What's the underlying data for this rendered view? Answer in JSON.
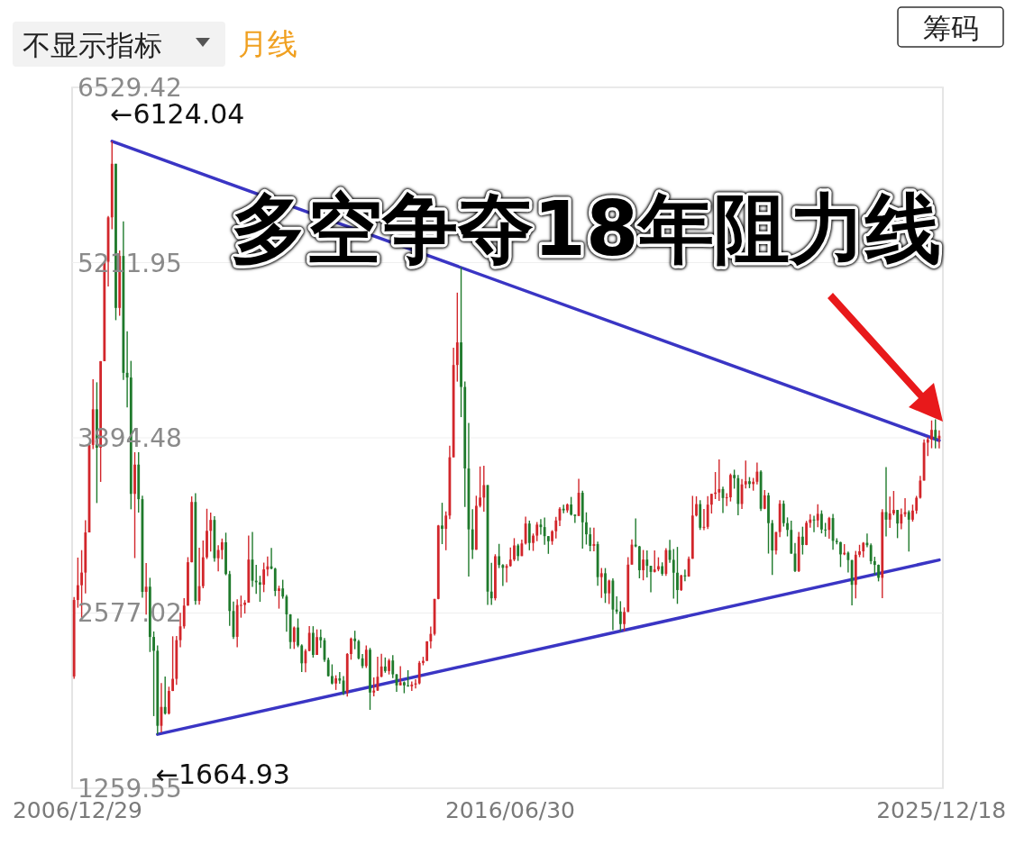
{
  "chart_data": {
    "type": "candlestick",
    "title": "多空争夺18年阻力线",
    "annotations": [
      "不显示指标",
      "月线",
      "筹码",
      {
        "text": "←6124.04",
        "x": "2007-10",
        "y": 6124.04
      },
      {
        "text": "←1664.93",
        "x": "2008-10",
        "y": 1664.93
      }
    ],
    "xlim": [
      "2006-11-16",
      "2025-12-31"
    ],
    "xticks": [
      {
        "value": "2006-12-29",
        "label": "2006/12/29"
      },
      {
        "value": "2016-06-30",
        "label": "2016/06/30"
      },
      {
        "value": "2025-12-18",
        "label": "2025/12/18"
      }
    ],
    "ylim": [
      1259.55,
      6529.42
    ],
    "yticks": [
      1259.55,
      2577.02,
      3894.48,
      5211.95,
      6529.42
    ],
    "grid": "y",
    "x": [
      "2006-12",
      "2007-01",
      "2007-02",
      "2007-03",
      "2007-04",
      "2007-05",
      "2007-06",
      "2007-07",
      "2007-08",
      "2007-09",
      "2007-10",
      "2007-11",
      "2007-12",
      "2008-01",
      "2008-02",
      "2008-03",
      "2008-04",
      "2008-05",
      "2008-06",
      "2008-07",
      "2008-08",
      "2008-09",
      "2008-10",
      "2008-11",
      "2008-12",
      "2009-01",
      "2009-02",
      "2009-03",
      "2009-04",
      "2009-05",
      "2009-06",
      "2009-07",
      "2009-08",
      "2009-09",
      "2009-10",
      "2009-11",
      "2009-12",
      "2010-01",
      "2010-02",
      "2010-03",
      "2010-04",
      "2010-05",
      "2010-06",
      "2010-07",
      "2010-08",
      "2010-09",
      "2010-10",
      "2010-11",
      "2010-12",
      "2011-01",
      "2011-02",
      "2011-03",
      "2011-04",
      "2011-05",
      "2011-06",
      "2011-07",
      "2011-08",
      "2011-09",
      "2011-10",
      "2011-11",
      "2011-12",
      "2012-01",
      "2012-02",
      "2012-03",
      "2012-04",
      "2012-05",
      "2012-06",
      "2012-07",
      "2012-08",
      "2012-09",
      "2012-10",
      "2012-11",
      "2012-12",
      "2013-01",
      "2013-02",
      "2013-03",
      "2013-04",
      "2013-05",
      "2013-06",
      "2013-07",
      "2013-08",
      "2013-09",
      "2013-10",
      "2013-11",
      "2013-12",
      "2014-01",
      "2014-02",
      "2014-03",
      "2014-04",
      "2014-05",
      "2014-06",
      "2014-07",
      "2014-08",
      "2014-09",
      "2014-10",
      "2014-11",
      "2014-12",
      "2015-01",
      "2015-02",
      "2015-03",
      "2015-04",
      "2015-05",
      "2015-06",
      "2015-07",
      "2015-08",
      "2015-09",
      "2015-10",
      "2015-11",
      "2015-12",
      "2016-01",
      "2016-02",
      "2016-03",
      "2016-04",
      "2016-05",
      "2016-06",
      "2016-07",
      "2016-08",
      "2016-09",
      "2016-10",
      "2016-11",
      "2016-12",
      "2017-01",
      "2017-02",
      "2017-03",
      "2017-04",
      "2017-05",
      "2017-06",
      "2017-07",
      "2017-08",
      "2017-09",
      "2017-10",
      "2017-11",
      "2017-12",
      "2018-01",
      "2018-02",
      "2018-03",
      "2018-04",
      "2018-05",
      "2018-06",
      "2018-07",
      "2018-08",
      "2018-09",
      "2018-10",
      "2018-11",
      "2018-12",
      "2019-01",
      "2019-02",
      "2019-03",
      "2019-04",
      "2019-05",
      "2019-06",
      "2019-07",
      "2019-08",
      "2019-09",
      "2019-10",
      "2019-11",
      "2019-12",
      "2020-01",
      "2020-02",
      "2020-03",
      "2020-04",
      "2020-05",
      "2020-06",
      "2020-07",
      "2020-08",
      "2020-09",
      "2020-10",
      "2020-11",
      "2020-12",
      "2021-01",
      "2021-02",
      "2021-03",
      "2021-04",
      "2021-05",
      "2021-06",
      "2021-07",
      "2021-08",
      "2021-09",
      "2021-10",
      "2021-11",
      "2021-12",
      "2022-01",
      "2022-02",
      "2022-03",
      "2022-04",
      "2022-05",
      "2022-06",
      "2022-07",
      "2022-08",
      "2022-09",
      "2022-10",
      "2022-11",
      "2022-12",
      "2023-01",
      "2023-02",
      "2023-03",
      "2023-04",
      "2023-05",
      "2023-06",
      "2023-07",
      "2023-08",
      "2023-09",
      "2023-10",
      "2023-11",
      "2023-12",
      "2024-01",
      "2024-02",
      "2024-03",
      "2024-04",
      "2024-05",
      "2024-06",
      "2024-07",
      "2024-08",
      "2024-09",
      "2024-10",
      "2024-11",
      "2024-12",
      "2025-01",
      "2025-02",
      "2025-03",
      "2025-04",
      "2025-05",
      "2025-06",
      "2025-07",
      "2025-08",
      "2025-09",
      "2025-10",
      "2025-11",
      "2025-12"
    ],
    "ohlc": [
      [
        2100,
        2698,
        2082,
        2675
      ],
      [
        2675,
        2994,
        2617,
        2786
      ],
      [
        2786,
        3050,
        2541,
        2881
      ],
      [
        2881,
        3275,
        2724,
        3183
      ],
      [
        3183,
        3841,
        3183,
        3841
      ],
      [
        3841,
        4335,
        3810,
        4109
      ],
      [
        4109,
        4312,
        3404,
        3820
      ],
      [
        3820,
        4471,
        3563,
        4471
      ],
      [
        4471,
        5219,
        4471,
        5218
      ],
      [
        5218,
        5562,
        5032,
        5552
      ],
      [
        5552,
        6124.04,
        5462,
        5955
      ],
      [
        5955,
        5955,
        4779,
        4871
      ],
      [
        4871,
        5303,
        4812,
        5262
      ],
      [
        5262,
        5522,
        4330,
        4383
      ],
      [
        4383,
        4695,
        4123,
        4348
      ],
      [
        4348,
        4473,
        3357,
        3473
      ],
      [
        3473,
        3786,
        2990,
        3693
      ],
      [
        3693,
        3786,
        3333,
        3433
      ],
      [
        3433,
        3459,
        2693,
        2736
      ],
      [
        2736,
        2953,
        2566,
        2775
      ],
      [
        2775,
        2842,
        2284,
        2397
      ],
      [
        2397,
        2438,
        1802,
        2293
      ],
      [
        2293,
        2333,
        1664.93,
        1729
      ],
      [
        1729,
        2051,
        1679,
        1871
      ],
      [
        1871,
        2100,
        1814,
        1821
      ],
      [
        1821,
        2023,
        1814,
        1991
      ],
      [
        1991,
        2402,
        1990,
        2082
      ],
      [
        2082,
        2404,
        2037,
        2373
      ],
      [
        2373,
        2579,
        2320,
        2477
      ],
      [
        2477,
        2689,
        2461,
        2633
      ],
      [
        2633,
        2997,
        2632,
        2959
      ],
      [
        2959,
        3454,
        2958,
        3412
      ],
      [
        3412,
        3478,
        2639,
        2668
      ],
      [
        2668,
        3068,
        2639,
        2779
      ],
      [
        2779,
        3123,
        2764,
        2996
      ],
      [
        2996,
        3361,
        2983,
        3195
      ],
      [
        3195,
        3333,
        3039,
        3277
      ],
      [
        3277,
        3306,
        2963,
        2989
      ],
      [
        2989,
        3086,
        2890,
        3051
      ],
      [
        3051,
        3137,
        2981,
        3109
      ],
      [
        3109,
        3181,
        2861,
        2870
      ],
      [
        2870,
        2894,
        2481,
        2592
      ],
      [
        2592,
        2663,
        2382,
        2398
      ],
      [
        2398,
        2680,
        2319,
        2637
      ],
      [
        2637,
        2708,
        2542,
        2638
      ],
      [
        2638,
        2674,
        2573,
        2655
      ],
      [
        2655,
        3159,
        2655,
        2979
      ],
      [
        2979,
        3186,
        2774,
        2820
      ],
      [
        2820,
        2939,
        2721,
        2808
      ],
      [
        2808,
        2857,
        2661,
        2790
      ],
      [
        2790,
        2956,
        2734,
        2905
      ],
      [
        2905,
        3002,
        2854,
        2928
      ],
      [
        2928,
        3067,
        2906,
        2911
      ],
      [
        2911,
        2917,
        2704,
        2743
      ],
      [
        2743,
        2782,
        2610,
        2762
      ],
      [
        2762,
        2827,
        2685,
        2701
      ],
      [
        2701,
        2714,
        2437,
        2567
      ],
      [
        2567,
        2568,
        2307,
        2359
      ],
      [
        2359,
        2476,
        2307,
        2468
      ],
      [
        2468,
        2536,
        2320,
        2333
      ],
      [
        2333,
        2342,
        2134,
        2199
      ],
      [
        2199,
        2306,
        2132,
        2292
      ],
      [
        2292,
        2479,
        2289,
        2428
      ],
      [
        2428,
        2478,
        2242,
        2262
      ],
      [
        2262,
        2454,
        2262,
        2396
      ],
      [
        2396,
        2453,
        2315,
        2372
      ],
      [
        2372,
        2389,
        2210,
        2225
      ],
      [
        2225,
        2241,
        2100,
        2103
      ],
      [
        2103,
        2191,
        2040,
        2047
      ],
      [
        2047,
        2109,
        1999,
        2086
      ],
      [
        2086,
        2133,
        2046,
        2069
      ],
      [
        2069,
        2103,
        1960,
        1980
      ],
      [
        1980,
        2276,
        1949,
        2269
      ],
      [
        2269,
        2393,
        2226,
        2385
      ],
      [
        2385,
        2444,
        2305,
        2365
      ],
      [
        2365,
        2376,
        2228,
        2236
      ],
      [
        2236,
        2268,
        2162,
        2178
      ],
      [
        2178,
        2334,
        2164,
        2301
      ],
      [
        2301,
        2315,
        1849,
        1979
      ],
      [
        1979,
        2093,
        1951,
        1994
      ],
      [
        1994,
        2248,
        1991,
        2098
      ],
      [
        2098,
        2270,
        2095,
        2175
      ],
      [
        2175,
        2243,
        2128,
        2141
      ],
      [
        2141,
        2233,
        2115,
        2220
      ],
      [
        2220,
        2260,
        2087,
        2116
      ],
      [
        2116,
        2118,
        1984,
        2033
      ],
      [
        2033,
        2178,
        2033,
        2056
      ],
      [
        2056,
        2063,
        1974,
        2033
      ],
      [
        2033,
        2147,
        2023,
        2026
      ],
      [
        2026,
        2062,
        1991,
        2039
      ],
      [
        2039,
        2080,
        2010,
        2048
      ],
      [
        2048,
        2216,
        2040,
        2202
      ],
      [
        2202,
        2248,
        2184,
        2217
      ],
      [
        2217,
        2365,
        2217,
        2364
      ],
      [
        2364,
        2475,
        2311,
        2420
      ],
      [
        2420,
        2683,
        2408,
        2683
      ],
      [
        2683,
        3239,
        2680,
        3235
      ],
      [
        3235,
        3406,
        3095,
        3210
      ],
      [
        3210,
        3341,
        3049,
        3310
      ],
      [
        3310,
        3836,
        3284,
        3748
      ],
      [
        3748,
        4572,
        3747,
        4442
      ],
      [
        4442,
        4986,
        4317,
        4612
      ],
      [
        4612,
        5178,
        4050,
        4277
      ],
      [
        4277,
        4317,
        3374,
        3664
      ],
      [
        3664,
        4006,
        2851,
        3206
      ],
      [
        3206,
        3357,
        2983,
        3053
      ],
      [
        3053,
        3459,
        3052,
        3383
      ],
      [
        3383,
        3679,
        3371,
        3445
      ],
      [
        3445,
        3685,
        3339,
        3539
      ],
      [
        3539,
        3539,
        2638,
        2738
      ],
      [
        2738,
        2954,
        2638,
        2688
      ],
      [
        2688,
        3019,
        2672,
        3004
      ],
      [
        3004,
        3097,
        2915,
        2938
      ],
      [
        2938,
        2945,
        2781,
        2917
      ],
      [
        2917,
        2944,
        2808,
        2930
      ],
      [
        2930,
        3070,
        2926,
        2979
      ],
      [
        2979,
        3140,
        2967,
        3085
      ],
      [
        3085,
        3097,
        2969,
        3005
      ],
      [
        3005,
        3129,
        3005,
        3100
      ],
      [
        3100,
        3301,
        3092,
        3250
      ],
      [
        3250,
        3272,
        3049,
        3104
      ],
      [
        3104,
        3175,
        3044,
        3159
      ],
      [
        3159,
        3261,
        3118,
        3242
      ],
      [
        3242,
        3283,
        3167,
        3223
      ],
      [
        3223,
        3295,
        3090,
        3155
      ],
      [
        3155,
        3156,
        3022,
        3117
      ],
      [
        3117,
        3200,
        3090,
        3192
      ],
      [
        3192,
        3300,
        3137,
        3273
      ],
      [
        3273,
        3373,
        3231,
        3361
      ],
      [
        3361,
        3392,
        3328,
        3349
      ],
      [
        3349,
        3401,
        3331,
        3393
      ],
      [
        3393,
        3450,
        3310,
        3317
      ],
      [
        3317,
        3318,
        3254,
        3307
      ],
      [
        3307,
        3587,
        3307,
        3481
      ],
      [
        3481,
        3496,
        3062,
        3259
      ],
      [
        3259,
        3334,
        3092,
        3169
      ],
      [
        3169,
        3220,
        3041,
        3082
      ],
      [
        3082,
        3219,
        3041,
        3095
      ],
      [
        3095,
        3114,
        2782,
        2847
      ],
      [
        2847,
        2916,
        2691,
        2876
      ],
      [
        2876,
        2915,
        2653,
        2725
      ],
      [
        2725,
        2827,
        2644,
        2821
      ],
      [
        2821,
        2838,
        2449,
        2603
      ],
      [
        2603,
        2703,
        2571,
        2588
      ],
      [
        2588,
        2666,
        2440,
        2494
      ],
      [
        2494,
        2619,
        2441,
        2585
      ],
      [
        2585,
        2997,
        2585,
        2941
      ],
      [
        2941,
        3130,
        2941,
        3091
      ],
      [
        3091,
        3288,
        3071,
        3078
      ],
      [
        3078,
        3082,
        2838,
        2899
      ],
      [
        2899,
        3051,
        2823,
        2979
      ],
      [
        2979,
        3048,
        2844,
        2932
      ],
      [
        2932,
        2932,
        2733,
        2886
      ],
      [
        2886,
        3048,
        2882,
        2905
      ],
      [
        2905,
        2996,
        2891,
        2929
      ],
      [
        2929,
        2958,
        2857,
        2872
      ],
      [
        2872,
        3064,
        2857,
        3050
      ],
      [
        3050,
        3128,
        2955,
        2977
      ],
      [
        2977,
        3058,
        2685,
        2880
      ],
      [
        2880,
        3074,
        2646,
        2750
      ],
      [
        2750,
        2865,
        2743,
        2860
      ],
      [
        2860,
        2904,
        2816,
        2852
      ],
      [
        2852,
        3002,
        2849,
        2985
      ],
      [
        2985,
        3458,
        2985,
        3310
      ],
      [
        3310,
        3455,
        3303,
        3396
      ],
      [
        3396,
        3425,
        3202,
        3218
      ],
      [
        3218,
        3359,
        3201,
        3225
      ],
      [
        3225,
        3456,
        3209,
        3392
      ],
      [
        3392,
        3474,
        3325,
        3473
      ],
      [
        3473,
        3637,
        3434,
        3483
      ],
      [
        3483,
        3732,
        3421,
        3509
      ],
      [
        3509,
        3527,
        3329,
        3442
      ],
      [
        3442,
        3478,
        3381,
        3447
      ],
      [
        3447,
        3626,
        3416,
        3615
      ],
      [
        3615,
        3655,
        3512,
        3591
      ],
      [
        3591,
        3615,
        3312,
        3397
      ],
      [
        3397,
        3584,
        3359,
        3544
      ],
      [
        3544,
        3723,
        3513,
        3568
      ],
      [
        3568,
        3599,
        3516,
        3547
      ],
      [
        3547,
        3593,
        3497,
        3564
      ],
      [
        3564,
        3708,
        3544,
        3640
      ],
      [
        3640,
        3651,
        3344,
        3361
      ],
      [
        3361,
        3501,
        3357,
        3462
      ],
      [
        3462,
        3482,
        3024,
        3253
      ],
      [
        3253,
        3277,
        2864,
        3047
      ],
      [
        3047,
        3187,
        3018,
        3186
      ],
      [
        3186,
        3425,
        3148,
        3399
      ],
      [
        3399,
        3423,
        3227,
        3253
      ],
      [
        3253,
        3296,
        3153,
        3202
      ],
      [
        3202,
        3271,
        3022,
        3024
      ],
      [
        3024,
        3103,
        2886,
        2893
      ],
      [
        2893,
        3186,
        2885,
        3151
      ],
      [
        3151,
        3226,
        3017,
        3089
      ],
      [
        3089,
        3270,
        3087,
        3255
      ],
      [
        3255,
        3321,
        3218,
        3280
      ],
      [
        3280,
        3308,
        3185,
        3273
      ],
      [
        3273,
        3395,
        3223,
        3323
      ],
      [
        3323,
        3349,
        3176,
        3205
      ],
      [
        3205,
        3255,
        3151,
        3202
      ],
      [
        3202,
        3300,
        3135,
        3291
      ],
      [
        3291,
        3322,
        3053,
        3120
      ],
      [
        3120,
        3139,
        3093,
        3110
      ],
      [
        3110,
        3113,
        2923,
        3018
      ],
      [
        3018,
        3095,
        3012,
        3030
      ],
      [
        3030,
        3039,
        2882,
        2975
      ],
      [
        2975,
        2977,
        2635,
        2789
      ],
      [
        2789,
        3044,
        2687,
        3015
      ],
      [
        3015,
        3090,
        2997,
        3041
      ],
      [
        3041,
        3110,
        2995,
        3105
      ],
      [
        3105,
        3175,
        3072,
        3087
      ],
      [
        3087,
        3101,
        2944,
        2967
      ],
      [
        2967,
        3000,
        2865,
        2939
      ],
      [
        2939,
        2942,
        2815,
        2842
      ],
      [
        2842,
        3358,
        2689,
        3336
      ],
      [
        3336,
        3674,
        3153,
        3279
      ],
      [
        3279,
        3452,
        3217,
        3326
      ],
      [
        3326,
        3495,
        3312,
        3352
      ],
      [
        3352,
        3352,
        3140,
        3250
      ],
      [
        3250,
        3362,
        3207,
        3320
      ],
      [
        3320,
        3440,
        3300,
        3336
      ],
      [
        3336,
        3350,
        3040,
        3279
      ],
      [
        3279,
        3392,
        3264,
        3347
      ],
      [
        3347,
        3458,
        3323,
        3444
      ],
      [
        3444,
        3609,
        3438,
        3573
      ],
      [
        3573,
        3883,
        3573,
        3858
      ],
      [
        3858,
        3899,
        3758,
        3882
      ],
      [
        3882,
        4025,
        3816,
        3954
      ],
      [
        3954,
        4034,
        3815,
        3888
      ],
      [
        3888,
        3950,
        3815,
        3910
      ]
    ],
    "series": [
      {
        "type": "line",
        "x": [
          "2007-10",
          "2025-12"
        ],
        "values": [
          6124.04,
          3874
        ],
        "color": "#3a35c4"
      },
      {
        "type": "line",
        "x": [
          "2008-10",
          "2025-12"
        ],
        "values": [
          1664.93,
          2976
        ],
        "color": "#3a35c4"
      }
    ]
  }
}
